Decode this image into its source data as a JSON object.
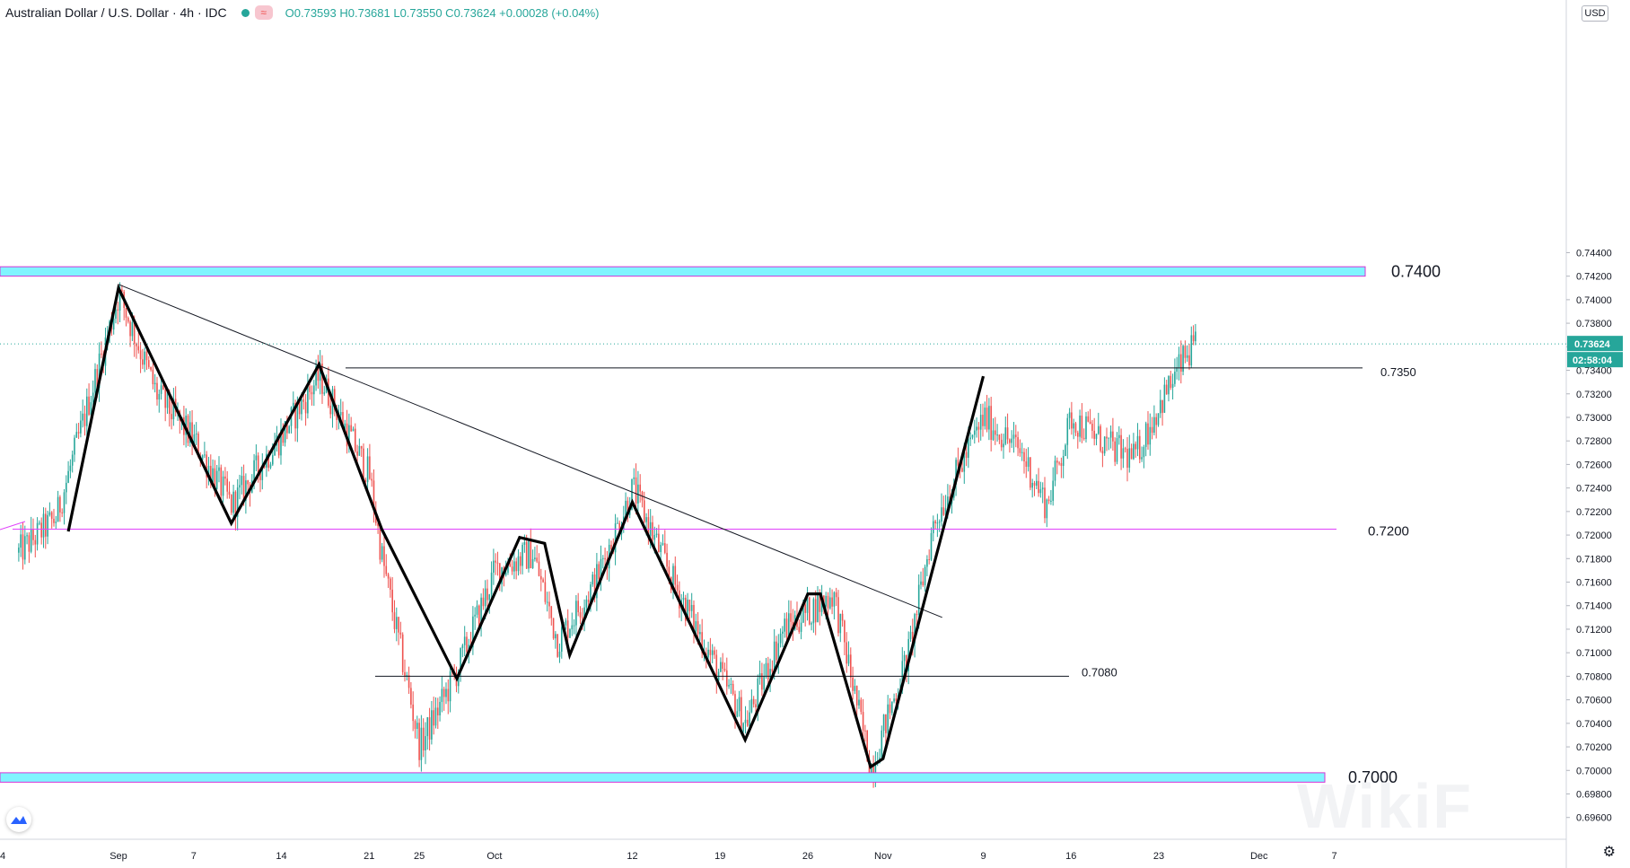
{
  "header": {
    "title": "Australian Dollar / U.S. Dollar · 4h · IDC",
    "ohlc": "O0.73593 H0.73681 L0.73550 C0.73624 +0.00028 (+0.04%)"
  },
  "currency_label": "USD",
  "watermark": "WikiF",
  "colors": {
    "up": "#26a69a",
    "down": "#ef5350",
    "zone_fill": "#80f4ff",
    "zone_border": "#d633d6",
    "magenta": "#e040fb",
    "price_tag": "#26a69a"
  },
  "chart_data": {
    "type": "candlestick",
    "symbol": "Australian Dollar / U.S. Dollar",
    "timeframe": "4h",
    "ylim": [
      0.6955,
      0.7458
    ],
    "y_ticks": [
      "0.69600",
      "0.69800",
      "0.70000",
      "0.70200",
      "0.70400",
      "0.70600",
      "0.70800",
      "0.71000",
      "0.71200",
      "0.71400",
      "0.71600",
      "0.71800",
      "0.72000",
      "0.72200",
      "0.72400",
      "0.72600",
      "0.72800",
      "0.73000",
      "0.73200",
      "0.73400",
      "0.73600",
      "0.73800",
      "0.74000",
      "0.74200",
      "0.74400"
    ],
    "x_ticks": [
      "Sep",
      "7",
      "14",
      "21",
      "25",
      "Oct",
      "12",
      "19",
      "26",
      "Nov",
      "9",
      "16",
      "23",
      "Dec",
      "7"
    ],
    "current_price": "0.73624",
    "countdown": "02:58:04",
    "zones": [
      {
        "label": "0.7400",
        "top": 0.7428,
        "bottom": 0.742
      },
      {
        "label": "0.7000",
        "top": 0.6998,
        "bottom": 0.699
      }
    ],
    "levels": [
      {
        "label": "0.7350",
        "value": 0.7342,
        "color": "#131722"
      },
      {
        "label": "0.7200",
        "value": 0.7205,
        "color": "#e040fb"
      },
      {
        "label": "0.7080",
        "value": 0.708,
        "color": "#131722"
      }
    ],
    "trendline": {
      "from": {
        "x": "Sep 1",
        "y": 0.7413
      },
      "to": {
        "x": "Nov 5",
        "y": 0.713
      }
    },
    "zigzag": [
      {
        "x": "Aug 28",
        "y": 0.7203
      },
      {
        "x": "Sep 1",
        "y": 0.741
      },
      {
        "x": "Sep 10",
        "y": 0.721
      },
      {
        "x": "Sep 17",
        "y": 0.7345
      },
      {
        "x": "Sep 22",
        "y": 0.7205
      },
      {
        "x": "Sep 28",
        "y": 0.7078
      },
      {
        "x": "Oct 3",
        "y": 0.7198
      },
      {
        "x": "Oct 5",
        "y": 0.7193
      },
      {
        "x": "Oct 7",
        "y": 0.7098
      },
      {
        "x": "Oct 12",
        "y": 0.7228
      },
      {
        "x": "Oct 21",
        "y": 0.7026
      },
      {
        "x": "Oct 26",
        "y": 0.715
      },
      {
        "x": "Oct 27",
        "y": 0.715
      },
      {
        "x": "Oct 31",
        "y": 0.7003
      },
      {
        "x": "Nov 1",
        "y": 0.701
      },
      {
        "x": "Nov 9",
        "y": 0.7335
      }
    ],
    "price_path": [
      {
        "x": "Aug 24",
        "y": 0.7185
      },
      {
        "x": "Aug 27",
        "y": 0.7215
      },
      {
        "x": "Sep 1",
        "y": 0.7405
      },
      {
        "x": "Sep 4",
        "y": 0.732
      },
      {
        "x": "Sep 7",
        "y": 0.728
      },
      {
        "x": "Sep 10",
        "y": 0.7225
      },
      {
        "x": "Sep 14",
        "y": 0.7285
      },
      {
        "x": "Sep 17",
        "y": 0.7335
      },
      {
        "x": "Sep 21",
        "y": 0.725
      },
      {
        "x": "Sep 22",
        "y": 0.718
      },
      {
        "x": "Sep 25",
        "y": 0.702
      },
      {
        "x": "Sep 28",
        "y": 0.7085
      },
      {
        "x": "Oct 1",
        "y": 0.717
      },
      {
        "x": "Oct 4",
        "y": 0.7185
      },
      {
        "x": "Oct 6",
        "y": 0.711
      },
      {
        "x": "Oct 9",
        "y": 0.716
      },
      {
        "x": "Oct 12",
        "y": 0.724
      },
      {
        "x": "Oct 15",
        "y": 0.7165
      },
      {
        "x": "Oct 19",
        "y": 0.708
      },
      {
        "x": "Oct 21",
        "y": 0.704
      },
      {
        "x": "Oct 24",
        "y": 0.712
      },
      {
        "x": "Oct 28",
        "y": 0.715
      },
      {
        "x": "Oct 30",
        "y": 0.705
      },
      {
        "x": "Oct 31",
        "y": 0.7002
      },
      {
        "x": "Nov 3",
        "y": 0.71
      },
      {
        "x": "Nov 5",
        "y": 0.721
      },
      {
        "x": "Nov 9",
        "y": 0.73
      },
      {
        "x": "Nov 12",
        "y": 0.727
      },
      {
        "x": "Nov 14",
        "y": 0.7225
      },
      {
        "x": "Nov 16",
        "y": 0.73
      },
      {
        "x": "Nov 19",
        "y": 0.7275
      },
      {
        "x": "Nov 21",
        "y": 0.7265
      },
      {
        "x": "Nov 23",
        "y": 0.731
      },
      {
        "x": "Nov 25",
        "y": 0.735
      },
      {
        "x": "Nov 26",
        "y": 0.7362
      }
    ]
  }
}
